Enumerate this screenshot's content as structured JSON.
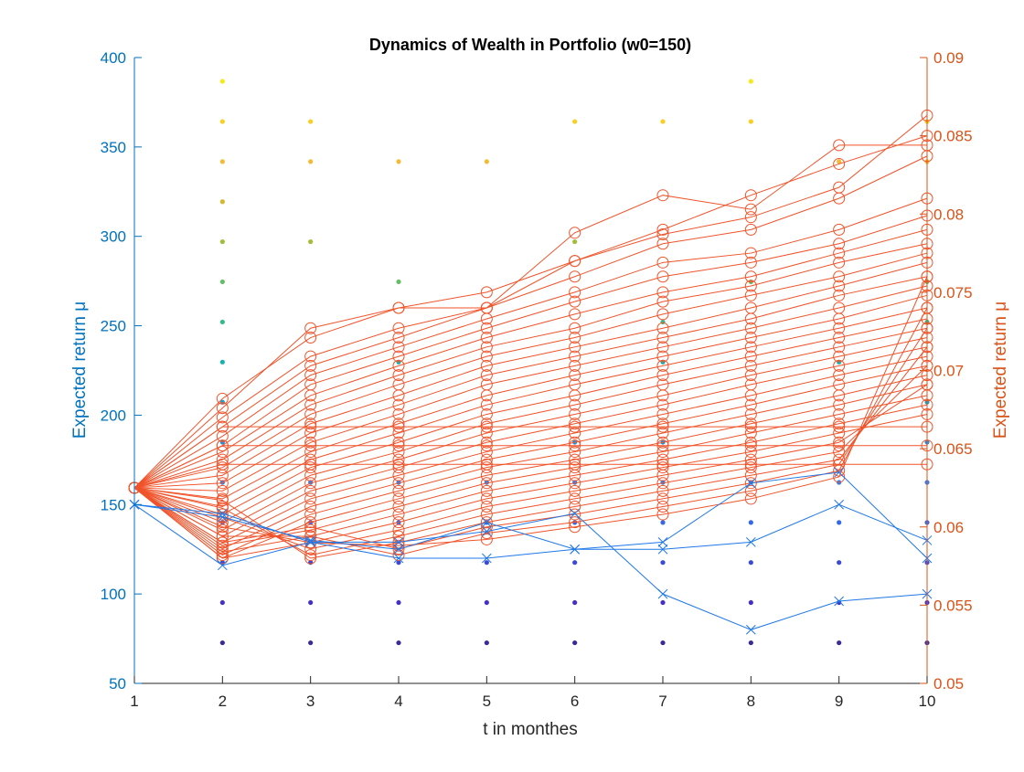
{
  "chart_data": {
    "type": "line",
    "title": "Dynamics of Wealth in Portfolio (w0=150)",
    "xlabel": "t in monthes",
    "ylabel_left": "Expected return μ",
    "ylabel_right": "Expected return μ",
    "xlim": [
      1,
      10
    ],
    "ylim_left": [
      50,
      400
    ],
    "ylim_right": [
      0.05,
      0.09
    ],
    "x_ticks": [
      1,
      2,
      3,
      4,
      5,
      6,
      7,
      8,
      9,
      10
    ],
    "y_left_ticks": [
      50,
      100,
      150,
      200,
      250,
      300,
      350,
      400
    ],
    "y_right_ticks": [
      "0.05",
      "0.055",
      "0.06",
      "0.065",
      "0.07",
      "0.075",
      "0.08",
      "0.085",
      "0.09"
    ],
    "grid": false,
    "colors": {
      "left_axis": "#0072BD",
      "right_axis": "#D95319",
      "blue_series": "#1f78e8",
      "orange_series": "#f0532a"
    },
    "scatter_levels": [
      {
        "value": 72.7,
        "color": "#3a2b96",
        "x": [
          2,
          3,
          4,
          5,
          6,
          7,
          8,
          9,
          10
        ]
      },
      {
        "value": 95.2,
        "color": "#4331c6",
        "x": [
          2,
          3,
          4,
          5,
          6,
          7,
          8,
          9,
          10
        ]
      },
      {
        "value": 117.6,
        "color": "#3b4ad6",
        "x": [
          2,
          3,
          4,
          5,
          6,
          7,
          8,
          9,
          10
        ]
      },
      {
        "value": 140.0,
        "color": "#3568e8",
        "x": [
          2,
          3,
          4,
          5,
          6,
          7,
          8,
          9,
          10
        ]
      },
      {
        "value": 162.4,
        "color": "#2f80f0",
        "x": [
          2,
          3,
          4,
          5,
          6,
          7,
          8,
          9,
          10
        ]
      },
      {
        "value": 184.9,
        "color": "#1c93e0",
        "x": [
          2,
          6,
          7,
          10
        ]
      },
      {
        "value": 207.3,
        "color": "#12a6d0",
        "x": [
          2,
          10
        ]
      },
      {
        "value": 229.7,
        "color": "#16b2b0",
        "x": [
          2,
          4,
          7,
          9
        ]
      },
      {
        "value": 252.1,
        "color": "#33bb8c",
        "x": [
          2,
          7,
          10
        ]
      },
      {
        "value": 274.6,
        "color": "#64be66",
        "x": [
          2,
          4,
          8,
          10
        ]
      },
      {
        "value": 297.0,
        "color": "#a2bd38",
        "x": [
          2,
          3,
          6
        ]
      },
      {
        "value": 319.4,
        "color": "#d5b630",
        "x": [
          2
        ]
      },
      {
        "value": 341.8,
        "color": "#f4bb34",
        "x": [
          2,
          3,
          4,
          5,
          9,
          10
        ]
      },
      {
        "value": 364.2,
        "color": "#f8cf22",
        "x": [
          2,
          3,
          6,
          7,
          8,
          10
        ]
      },
      {
        "value": 386.7,
        "color": "#f6e91a",
        "x": [
          2,
          8
        ]
      }
    ],
    "blue_series": [
      {
        "x": [
          1,
          2,
          3,
          4,
          5,
          6,
          7,
          8,
          9,
          10
        ],
        "y": [
          150,
          116,
          129,
          129,
          135,
          145,
          100,
          80,
          96,
          100
        ]
      },
      {
        "x": [
          1,
          2,
          3,
          4,
          5,
          6,
          7,
          8,
          9,
          10
        ],
        "y": [
          150,
          145,
          129,
          120,
          120,
          125,
          125,
          129,
          150,
          130
        ]
      },
      {
        "x": [
          1,
          2,
          3,
          4,
          5,
          6,
          7,
          8,
          9,
          10
        ],
        "y": [
          150,
          143,
          130,
          125,
          140,
          125,
          129,
          162,
          168,
          120
        ]
      }
    ],
    "orange_series": [
      {
        "x": [
          1,
          2,
          3,
          4,
          5,
          6,
          7,
          8,
          9,
          10
        ],
        "y": [
          0.0625,
          0.0682,
          0.0721,
          0.074,
          0.074,
          0.0788,
          0.0812,
          0.0803,
          0.0844,
          0.0844
        ]
      },
      {
        "x": [
          1,
          2,
          3,
          4,
          5,
          6,
          7,
          8,
          9,
          10
        ],
        "y": [
          0.0625,
          0.0676,
          0.0727,
          0.074,
          0.075,
          0.077,
          0.079,
          0.0812,
          0.0832,
          0.085
        ]
      },
      {
        "x": [
          1,
          2,
          3,
          4,
          5,
          6,
          7,
          8,
          9,
          10
        ],
        "y": [
          0.0625,
          0.067,
          0.0709,
          0.0727,
          0.074,
          0.077,
          0.0787,
          0.0798,
          0.0817,
          0.0863
        ]
      },
      {
        "x": [
          1,
          2,
          3,
          4,
          5,
          6,
          7,
          8,
          9,
          10
        ],
        "y": [
          0.0625,
          0.0664,
          0.0703,
          0.0721,
          0.074,
          0.076,
          0.0781,
          0.079,
          0.081,
          0.0837
        ]
      },
      {
        "x": [
          1,
          2,
          3,
          4,
          5,
          6,
          7,
          8,
          9,
          10
        ],
        "y": [
          0.0625,
          0.0658,
          0.0697,
          0.0715,
          0.0733,
          0.075,
          0.0769,
          0.0775,
          0.079,
          0.081
        ]
      },
      {
        "x": [
          1,
          2,
          3,
          4,
          5,
          6,
          7,
          8,
          9,
          10
        ],
        "y": [
          0.0625,
          0.0652,
          0.0691,
          0.0709,
          0.0727,
          0.0744,
          0.076,
          0.0769,
          0.0781,
          0.0799
        ]
      },
      {
        "x": [
          1,
          2,
          3,
          4,
          5,
          6,
          7,
          8,
          9,
          10
        ],
        "y": [
          0.0625,
          0.0648,
          0.0684,
          0.0703,
          0.0721,
          0.0736,
          0.075,
          0.076,
          0.0775,
          0.079
        ]
      },
      {
        "x": [
          1,
          2,
          3,
          4,
          5,
          6,
          7,
          8,
          9,
          10
        ],
        "y": [
          0.0625,
          0.0643,
          0.0678,
          0.0697,
          0.0715,
          0.0727,
          0.0744,
          0.0754,
          0.0769,
          0.0781
        ]
      },
      {
        "x": [
          1,
          2,
          3,
          4,
          5,
          6,
          7,
          8,
          9,
          10
        ],
        "y": [
          0.0625,
          0.0638,
          0.0672,
          0.0691,
          0.0709,
          0.0721,
          0.0736,
          0.0748,
          0.076,
          0.0775
        ]
      },
      {
        "x": [
          1,
          2,
          3,
          4,
          5,
          6,
          7,
          8,
          9,
          10
        ],
        "y": [
          0.0625,
          0.0633,
          0.0666,
          0.0684,
          0.0703,
          0.0715,
          0.0727,
          0.074,
          0.0754,
          0.0769
        ]
      },
      {
        "x": [
          1,
          2,
          3,
          4,
          5,
          6,
          7,
          8,
          9,
          10
        ],
        "y": [
          0.0625,
          0.0628,
          0.066,
          0.0678,
          0.0697,
          0.0709,
          0.0721,
          0.0733,
          0.0748,
          0.076
        ]
      },
      {
        "x": [
          1,
          2,
          3,
          4,
          5,
          6,
          7,
          8,
          9,
          10
        ],
        "y": [
          0.0625,
          0.0623,
          0.0654,
          0.0672,
          0.0691,
          0.0703,
          0.0715,
          0.0727,
          0.074,
          0.0754
        ]
      },
      {
        "x": [
          1,
          2,
          3,
          4,
          5,
          6,
          7,
          8,
          9,
          10
        ],
        "y": [
          0.0625,
          0.0618,
          0.0648,
          0.0666,
          0.0684,
          0.0697,
          0.0709,
          0.0721,
          0.0733,
          0.0748
        ]
      },
      {
        "x": [
          1,
          2,
          3,
          4,
          5,
          6,
          7,
          8,
          9,
          10
        ],
        "y": [
          0.0625,
          0.0613,
          0.0643,
          0.066,
          0.0678,
          0.0691,
          0.0703,
          0.0715,
          0.0727,
          0.074
        ]
      },
      {
        "x": [
          1,
          2,
          3,
          4,
          5,
          6,
          7,
          8,
          9,
          10
        ],
        "y": [
          0.0625,
          0.0608,
          0.0638,
          0.0654,
          0.0672,
          0.0684,
          0.0697,
          0.0709,
          0.0721,
          0.0733
        ]
      },
      {
        "x": [
          1,
          2,
          3,
          4,
          5,
          6,
          7,
          8,
          9,
          10
        ],
        "y": [
          0.0625,
          0.0603,
          0.0633,
          0.0648,
          0.0666,
          0.0678,
          0.0691,
          0.0703,
          0.0715,
          0.0727
        ]
      },
      {
        "x": [
          1,
          2,
          3,
          4,
          5,
          6,
          7,
          8,
          9,
          10
        ],
        "y": [
          0.0625,
          0.0598,
          0.0628,
          0.0643,
          0.066,
          0.0672,
          0.0684,
          0.0697,
          0.0709,
          0.0721
        ]
      },
      {
        "x": [
          1,
          2,
          3,
          4,
          5,
          6,
          7,
          8,
          9,
          10
        ],
        "y": [
          0.0625,
          0.0594,
          0.0623,
          0.0638,
          0.0654,
          0.0666,
          0.0678,
          0.0691,
          0.0703,
          0.0715
        ]
      },
      {
        "x": [
          1,
          2,
          3,
          4,
          5,
          6,
          7,
          8,
          9,
          10
        ],
        "y": [
          0.0625,
          0.059,
          0.0618,
          0.0633,
          0.0648,
          0.066,
          0.0672,
          0.0684,
          0.0697,
          0.0709
        ]
      },
      {
        "x": [
          1,
          2,
          3,
          4,
          5,
          6,
          7,
          8,
          9,
          10
        ],
        "y": [
          0.0625,
          0.0586,
          0.0613,
          0.0628,
          0.0643,
          0.0654,
          0.0666,
          0.0678,
          0.0691,
          0.0703
        ]
      },
      {
        "x": [
          1,
          2,
          3,
          4,
          5,
          6,
          7,
          8,
          9,
          10
        ],
        "y": [
          0.0625,
          0.0582,
          0.0608,
          0.0623,
          0.0638,
          0.0648,
          0.066,
          0.0672,
          0.0684,
          0.0697
        ]
      },
      {
        "x": [
          1,
          2,
          3,
          4,
          5,
          6,
          7,
          8,
          9,
          10
        ],
        "y": [
          0.0625,
          0.058,
          0.0603,
          0.0618,
          0.0633,
          0.0643,
          0.0654,
          0.0666,
          0.0678,
          0.0691
        ]
      },
      {
        "x": [
          1,
          2,
          3,
          4,
          5,
          6,
          7,
          8,
          9,
          10
        ],
        "y": [
          0.0625,
          0.0588,
          0.0598,
          0.0613,
          0.0628,
          0.0638,
          0.0648,
          0.066,
          0.0672,
          0.0684
        ]
      },
      {
        "x": [
          1,
          2,
          3,
          4,
          5,
          6,
          7,
          8,
          9,
          10
        ],
        "y": [
          0.0625,
          0.0594,
          0.0594,
          0.0608,
          0.0623,
          0.0633,
          0.0643,
          0.0654,
          0.0666,
          0.0678
        ]
      },
      {
        "x": [
          1,
          2,
          3,
          4,
          5,
          6,
          7,
          8,
          9,
          10
        ],
        "y": [
          0.0625,
          0.06,
          0.059,
          0.0603,
          0.0618,
          0.0628,
          0.0638,
          0.0648,
          0.066,
          0.0672
        ]
      },
      {
        "x": [
          1,
          2,
          3,
          4,
          5,
          6,
          7,
          8,
          9,
          10
        ],
        "y": [
          0.0625,
          0.0606,
          0.0586,
          0.0598,
          0.0613,
          0.0623,
          0.0633,
          0.0643,
          0.0654,
          0.0691
        ]
      },
      {
        "x": [
          1,
          2,
          3,
          4,
          5,
          6,
          7,
          8,
          9,
          10
        ],
        "y": [
          0.0625,
          0.0612,
          0.0582,
          0.0594,
          0.0608,
          0.0618,
          0.0628,
          0.0638,
          0.0648,
          0.0703
        ]
      },
      {
        "x": [
          1,
          2,
          3,
          4,
          5,
          6,
          7,
          8,
          9,
          10
        ],
        "y": [
          0.0625,
          0.0617,
          0.058,
          0.059,
          0.0603,
          0.0613,
          0.0623,
          0.0633,
          0.0643,
          0.0715
        ]
      },
      {
        "x": [
          1,
          2,
          3,
          4,
          5,
          6,
          7,
          8,
          9,
          10
        ],
        "y": [
          0.0625,
          0.059,
          0.06,
          0.0586,
          0.06,
          0.0608,
          0.0618,
          0.0628,
          0.064,
          0.0727
        ]
      },
      {
        "x": [
          1,
          2,
          3,
          4,
          5,
          6,
          7,
          8,
          9,
          10
        ],
        "y": [
          0.0625,
          0.0584,
          0.0594,
          0.0582,
          0.0596,
          0.0603,
          0.0613,
          0.0623,
          0.0636,
          0.074
        ]
      },
      {
        "x": [
          1,
          2,
          3,
          4,
          5,
          6,
          7,
          8,
          9,
          10
        ],
        "y": [
          0.0625,
          0.058,
          0.059,
          0.0588,
          0.0592,
          0.06,
          0.0608,
          0.0618,
          0.0632,
          0.076
        ]
      },
      {
        "x": [
          1,
          2,
          3,
          4,
          5,
          6,
          7,
          8,
          9,
          10
        ],
        "y": [
          0.0625,
          0.0652,
          0.0652,
          0.0652,
          0.0652,
          0.0652,
          0.0652,
          0.0652,
          0.0652,
          0.0652
        ]
      },
      {
        "x": [
          1,
          2,
          3,
          4,
          5,
          6,
          7,
          8,
          9,
          10
        ],
        "y": [
          0.0625,
          0.064,
          0.064,
          0.064,
          0.064,
          0.064,
          0.064,
          0.064,
          0.064,
          0.064
        ]
      },
      {
        "x": [
          1,
          2,
          3,
          4,
          5,
          6,
          7,
          8,
          9,
          10
        ],
        "y": [
          0.0625,
          0.0664,
          0.0664,
          0.0664,
          0.0664,
          0.0664,
          0.0664,
          0.0664,
          0.0664,
          0.0664
        ]
      }
    ]
  }
}
